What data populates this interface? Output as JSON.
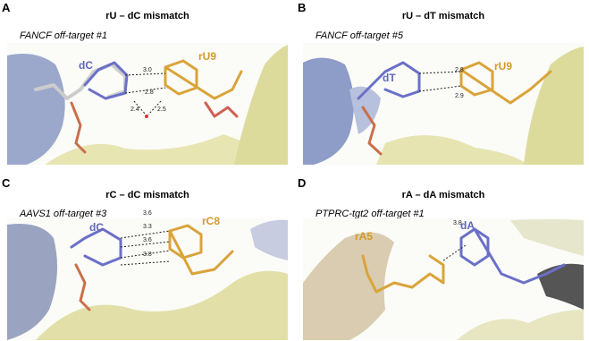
{
  "panels": [
    {
      "letter": "A",
      "title": "rU – dC mismatch",
      "subtitle": "FANCF off-target #1",
      "labels": [
        "dC",
        "rU9"
      ],
      "distances": [
        "3.0",
        "2.8",
        "2.4",
        "2.5"
      ]
    },
    {
      "letter": "B",
      "title": "rU – dT mismatch",
      "subtitle": "FANCF off-target #5",
      "labels": [
        "dT",
        "rU9"
      ],
      "distances": [
        "2.8",
        "2.9"
      ]
    },
    {
      "letter": "C",
      "title": "rC – dC mismatch",
      "subtitle": "AAVS1 off-target #3",
      "labels": [
        "dC",
        "rC8"
      ],
      "distances": [
        "3.6",
        "3.3",
        "3.6",
        "3.8"
      ]
    },
    {
      "letter": "D",
      "title": "rA – dA mismatch",
      "subtitle": "PTPRC-tgt2 off-target #1",
      "labels": [
        "rA5",
        "dA"
      ],
      "distances": [
        "3.8"
      ]
    }
  ]
}
